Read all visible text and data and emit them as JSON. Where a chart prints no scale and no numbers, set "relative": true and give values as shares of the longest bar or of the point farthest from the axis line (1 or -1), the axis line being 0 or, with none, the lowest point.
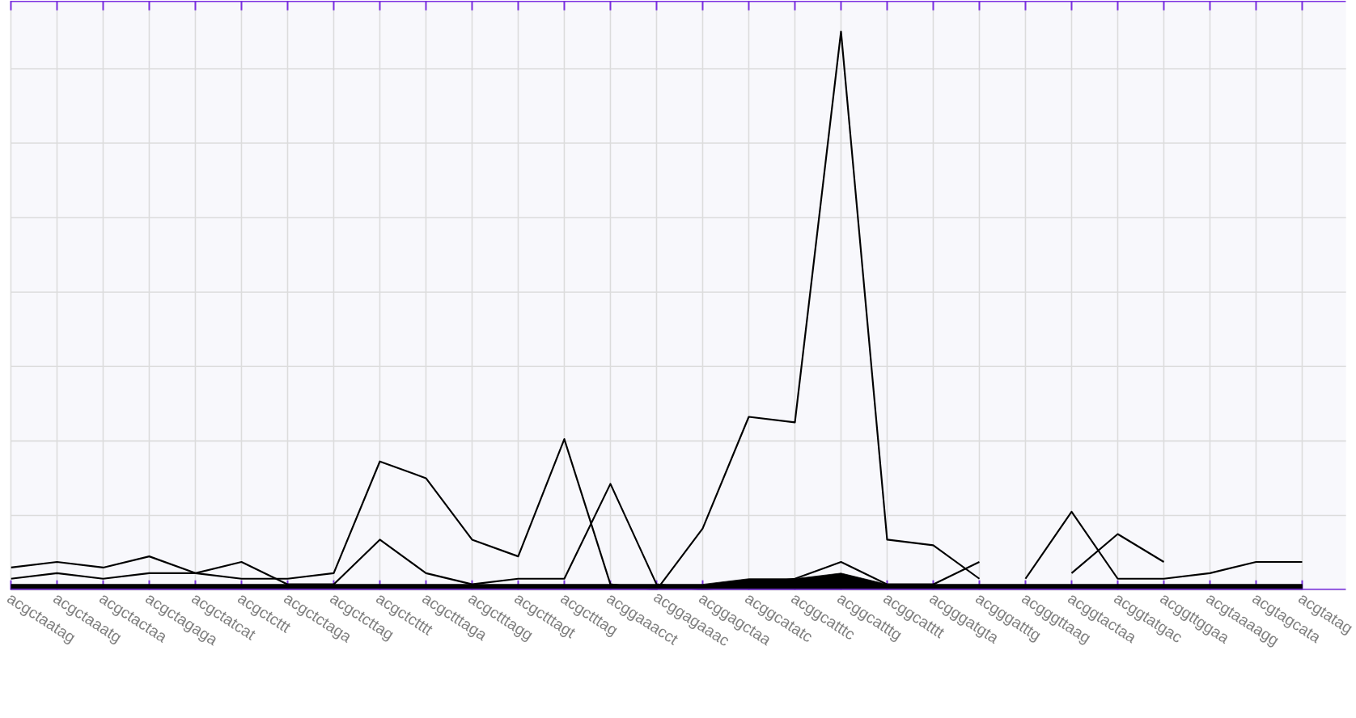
{
  "chart_data": {
    "type": "line",
    "relative": true,
    "grid": true,
    "marker": "none",
    "line_style": "solid",
    "categories": [
      "acgctaatag",
      "acgctaaatg",
      "acgctactaa",
      "acgctagaga",
      "acgctatcat",
      "acgctcttt",
      "acgctctaga",
      "acgctcttag",
      "acgctctttt",
      "acgctttaga",
      "acgctttagg",
      "acgctttagt",
      "acgctttag",
      "acggaaacct",
      "acggagaaac",
      "acggagctaa",
      "acggcatatc",
      "acggcatttc",
      "acggcatttg",
      "acggcatttt",
      "acgggatgta",
      "acgggatttg",
      "acgggttaag",
      "acggtactaa",
      "acggtatgac",
      "acggttggaa",
      "acgtaaaagg",
      "acgtagcata",
      "acgtatag"
    ],
    "series": [
      {
        "type": "area",
        "color": "#000000",
        "values": [
          0.01,
          0.01,
          0.01,
          0.01,
          0.01,
          0.01,
          0.01,
          0.01,
          0.01,
          0.01,
          0.01,
          0.01,
          0.01,
          0.01,
          0.01,
          0.01,
          0.02,
          0.02,
          0.03,
          0.01,
          0.01,
          0.01,
          0.01,
          0.01,
          0.01,
          0.01,
          0.01,
          0.01,
          0.01
        ]
      },
      {
        "color": "#000000",
        "values": [
          0.04,
          0.05,
          0.04,
          0.06,
          0.03,
          0.02,
          0.02,
          0.03,
          0.23,
          0.2,
          0.09,
          0.06,
          0.27,
          0.01,
          0,
          0.11,
          0.31,
          0.3,
          1,
          0.09,
          0.08,
          0.02,
          null,
          null,
          null,
          null,
          null,
          null,
          null
        ]
      },
      {
        "color": "#000000",
        "values": [
          0.02,
          0.03,
          0.02,
          0.03,
          0.03,
          0.05,
          0.01,
          0.01,
          0.09,
          0.03,
          0.01,
          0.02,
          0.02,
          0.19,
          0.01,
          0,
          0.01,
          0.02,
          0.05,
          0.01,
          0.01,
          0.05,
          null,
          null,
          null,
          null,
          null,
          null,
          null
        ]
      },
      {
        "color": "#000000",
        "values": [
          null,
          null,
          null,
          null,
          null,
          null,
          null,
          null,
          null,
          null,
          null,
          null,
          null,
          null,
          null,
          null,
          null,
          null,
          null,
          null,
          null,
          null,
          0.02,
          0.14,
          0.02,
          0.02,
          0.03,
          0.05,
          0.05
        ]
      },
      {
        "color": "#000000",
        "values": [
          null,
          null,
          null,
          null,
          null,
          null,
          null,
          null,
          null,
          null,
          null,
          null,
          null,
          null,
          null,
          null,
          null,
          null,
          null,
          null,
          null,
          null,
          null,
          0.03,
          0.1,
          0.05,
          null,
          null,
          null
        ]
      }
    ]
  }
}
